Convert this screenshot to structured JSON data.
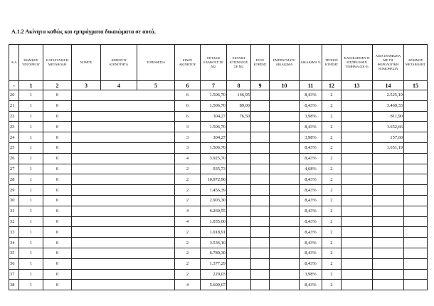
{
  "title": "Α.1.2 Ακίνητα καθώς και εμπράγματα δικαιώματα σε αυτά.",
  "headers": [
    "Α/Α",
    "ΚΩΔΙΚΟΣ ΥΠΟΧΡΕΟΥ",
    "ΚΑΤΑΣΤΑΣΗ Ή ΜΕΤΑΒΟΛΗ",
    "ΝΟΜΟΣ",
    "ΔΗΜΟΣ Ή ΚΟΙΝΟΤΗΤΑ",
    "ΤΟΠΟΘΕΣΙΑ",
    "ΕΙΔΟΣ ΑΚΙΝΗΤΟΥ",
    "ΕΚΤΑΣΗ ΕΔΑΦΟΥΣ ΣΕ Μ2",
    "ΕΚΤΑΣΗ ΚΤΙΣΜΑΤΟΣ ΣΕ Μ2",
    "ΕΤΟΣ ΚΤΗΣΗΣ",
    "ΕΜΠΡΑΓΜΑΤΟ ΔΙΚΑΙΩΜΑ",
    "ΔΙΚΑΙΩΜΑ %",
    "ΤΡΟΠΟΣ ΚΤΗΣΗΣ",
    "ΚΑΤΑΒΛΗΘΕΝ Ή ΕΙΣΠΡΑΧΘΕΝ ΤΙΜΗΜΑ (ΣΕ €)",
    "ΑΞΙΑ ΣΥΜΦΩΝΑ ΜΕ ΤΗ ΦΟΡΟΛΟΓΙΚΗ ΝΟΜΟΘΕΣΙΑ",
    "ΑΡΙΘΜΟΣ ΜΕΤΑΒΟΛΗΣ"
  ],
  "column_numbers": [
    "-",
    "1",
    "2",
    "3",
    "4",
    "5",
    "6",
    "7",
    "8",
    "9",
    "10",
    "11",
    "12",
    "13",
    "14",
    "15"
  ],
  "rows": [
    [
      "20",
      "1",
      "0",
      "6",
      "1.506,70",
      "146,95",
      "8,43%",
      "2",
      "2.525,19"
    ],
    [
      "21",
      "1",
      "0",
      "6",
      "1.506,70",
      "89,00",
      "8,43%",
      "2",
      "3.469,33"
    ],
    [
      "22",
      "1",
      "0",
      "6",
      "304,27",
      "76,50",
      "3,98%",
      "2",
      "811,90"
    ],
    [
      "23",
      "1",
      "0",
      "3",
      "1.506,70",
      "",
      "8,43%",
      "2",
      "1.652,66"
    ],
    [
      "24",
      "1",
      "0",
      "3",
      "304,27",
      "",
      "3,98%",
      "2",
      "157,60"
    ],
    [
      "25",
      "1",
      "0",
      "3",
      "1.506,70",
      "",
      "8,43%",
      "2",
      "1.651,19"
    ],
    [
      "26",
      "1",
      "0",
      "4",
      "3.925,70",
      "",
      "8,43%",
      "2",
      ""
    ],
    [
      "27",
      "1",
      "0",
      "2",
      "935,73",
      "",
      "4,68%",
      "2",
      ""
    ],
    [
      "28",
      "1",
      "0",
      "2",
      "10.972,90",
      "",
      "8,43%",
      "2",
      ""
    ],
    [
      "29",
      "1",
      "0",
      "2",
      "1.456,39",
      "",
      "8,43%",
      "2",
      ""
    ],
    [
      "30",
      "1",
      "0",
      "2",
      "2.903,30",
      "",
      "8,43%",
      "2",
      ""
    ],
    [
      "31",
      "1",
      "0",
      "4",
      "6.269,55",
      "",
      "8,43%",
      "2",
      ""
    ],
    [
      "32",
      "1",
      "0",
      "4",
      "1.035,00",
      "",
      "8,43%",
      "2",
      ""
    ],
    [
      "33",
      "1",
      "0",
      "2",
      "1.018,91",
      "",
      "8,43%",
      "2",
      ""
    ],
    [
      "34",
      "1",
      "0",
      "2",
      "3.536,10",
      "",
      "8,43%",
      "2",
      ""
    ],
    [
      "35",
      "1",
      "0",
      "2",
      "6.780,30",
      "",
      "8,43%",
      "2",
      ""
    ],
    [
      "36",
      "1",
      "0",
      "2",
      "1.377,29",
      "",
      "8,43%",
      "2",
      ""
    ],
    [
      "37",
      "1",
      "0",
      "2",
      "229,03",
      "",
      "3,98%",
      "2",
      ""
    ],
    [
      "38",
      "1",
      "0",
      "4",
      "5.600,67",
      "",
      "8,43%",
      "2",
      ""
    ]
  ]
}
